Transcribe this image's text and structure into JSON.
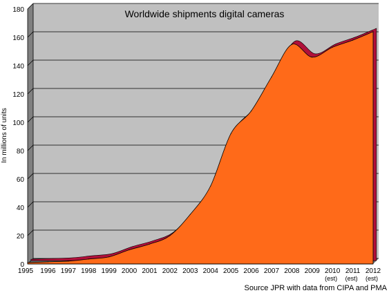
{
  "chart_data": {
    "type": "area",
    "title": "Worldwide shipments digital cameras",
    "ylabel": "In millions of units",
    "xlabel": "",
    "source": "Source JPR with data from CIPA and PMA",
    "categories": [
      "1995",
      "1996",
      "1997",
      "1998",
      "1999",
      "2000",
      "2001",
      "2002",
      "2003",
      "2004",
      "2005",
      "2006",
      "2007",
      "2008",
      "2009",
      "2010",
      "2011",
      "2012"
    ],
    "category_sublabels": [
      "",
      "",
      "",
      "",
      "",
      "",
      "",
      "",
      "",
      "",
      "",
      "",
      "",
      "",
      "",
      "(est)",
      "(est)",
      "(est)"
    ],
    "values": [
      1,
      1.5,
      2,
      3.5,
      5,
      10,
      14,
      20,
      35,
      55,
      92,
      108,
      132,
      155,
      146,
      153,
      158,
      164
    ],
    "ylim": [
      0,
      180
    ],
    "yticks": [
      0,
      20,
      40,
      60,
      80,
      100,
      120,
      140,
      160,
      180
    ],
    "grid": true,
    "style": "3d",
    "colors": {
      "area": "#ff6a19",
      "edge": "#b0103a",
      "wall": "#c0c0c0",
      "floor": "#808080",
      "line": "#000000"
    }
  }
}
